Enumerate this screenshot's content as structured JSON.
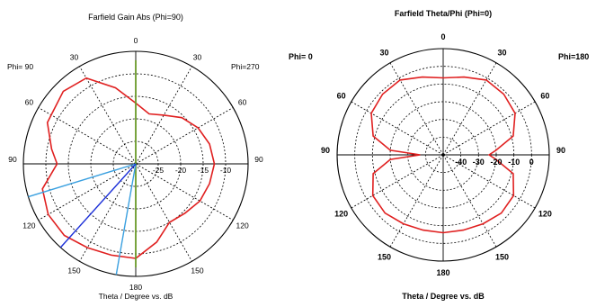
{
  "chart_data": [
    {
      "type": "polar",
      "title": "Farfield Gain Abs (Phi=90)",
      "xlabel": "Theta / Degree vs. dB",
      "left_side_label": "Phi= 90",
      "right_side_label": "Phi=270",
      "angle_tick_labels": [
        "0",
        "30",
        "30",
        "60",
        "60",
        "90",
        "90",
        "120",
        "120",
        "150",
        "150",
        "180"
      ],
      "radial_tick_labels": [
        "-25",
        "-20",
        "-15",
        "-10"
      ],
      "radial_ticks_db": [
        -25,
        -20,
        -15,
        -10
      ],
      "radial_range_db": [
        -30,
        -5
      ],
      "grid": true,
      "series": [
        {
          "color": "#e02020",
          "points_deg_db": [
            [
              -180,
              -9.0
            ],
            [
              -165,
              -9.0
            ],
            [
              -150,
              -8.5
            ],
            [
              -135,
              -7.5
            ],
            [
              -120,
              -7.5
            ],
            [
              -105,
              -8.5
            ],
            [
              -90,
              -12.5
            ],
            [
              -80,
              -11.0
            ],
            [
              -65,
              -8.3
            ],
            [
              -45,
              -7.2
            ],
            [
              -30,
              -8.0
            ],
            [
              -15,
              -12.5
            ],
            [
              0,
              -16.5
            ],
            [
              15,
              -18.5
            ],
            [
              30,
              -17.5
            ],
            [
              45,
              -15.5
            ],
            [
              60,
              -14.0
            ],
            [
              75,
              -13.0
            ],
            [
              90,
              -12.5
            ],
            [
              105,
              -13.0
            ],
            [
              120,
              -13.5
            ],
            [
              135,
              -14.5
            ],
            [
              150,
              -15.0
            ],
            [
              165,
              -12.0
            ],
            [
              180,
              -9.0
            ]
          ]
        },
        {
          "color": "#6a9a2a",
          "points_deg_db": [
            [
              -180,
              -7.0
            ],
            [
              0,
              -7.0
            ],
            [
              180,
              -7.0
            ]
          ]
        }
      ],
      "markers": [
        {
          "color": "#3aa0e0",
          "angle_deg": -107
        },
        {
          "color": "#3aa0e0",
          "angle_deg": -170
        },
        {
          "color": "#1a2ed8",
          "angle_deg": -138
        }
      ]
    },
    {
      "type": "polar",
      "title": "Farfield  Theta/Phi (Phi=0)",
      "xlabel": "Theta / Degree vs. dB",
      "left_side_label": "Phi=  0",
      "right_side_label": "Phi=180",
      "angle_tick_labels": [
        "0",
        "30",
        "30",
        "60",
        "60",
        "90",
        "90",
        "120",
        "120",
        "150",
        "150",
        "180"
      ],
      "radial_tick_labels": [
        "-40",
        "-30",
        "-20",
        "-10",
        "0"
      ],
      "radial_ticks_db": [
        -40,
        -30,
        -20,
        -10,
        0
      ],
      "radial_range_db": [
        -50,
        10
      ],
      "grid": true,
      "series": [
        {
          "color": "#e02020",
          "points_deg_db": [
            [
              -180,
              -6.0
            ],
            [
              -165,
              -6.0
            ],
            [
              -150,
              -5.0
            ],
            [
              -135,
              -3.5
            ],
            [
              -120,
              -4.0
            ],
            [
              -105,
              -9.0
            ],
            [
              -95,
              -20.0
            ],
            [
              -90,
              -37.0
            ],
            [
              -85,
              -20.0
            ],
            [
              -75,
              -9.0
            ],
            [
              -60,
              -3.0
            ],
            [
              -45,
              -1.5
            ],
            [
              -30,
              -1.2
            ],
            [
              -15,
              -4.5
            ],
            [
              0,
              -6.5
            ],
            [
              15,
              -4.5
            ],
            [
              30,
              -1.2
            ],
            [
              45,
              -1.5
            ],
            [
              60,
              -3.0
            ],
            [
              75,
              -9.0
            ],
            [
              85,
              -20.0
            ],
            [
              90,
              -24.0
            ],
            [
              95,
              -20.0
            ],
            [
              105,
              -9.0
            ],
            [
              120,
              -4.0
            ],
            [
              135,
              -3.5
            ],
            [
              150,
              -5.0
            ],
            [
              165,
              -6.0
            ],
            [
              180,
              -6.0
            ]
          ]
        }
      ]
    }
  ]
}
